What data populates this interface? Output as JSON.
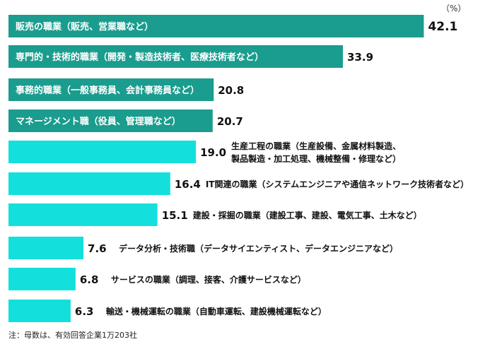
{
  "chart_data": {
    "type": "bar",
    "orientation": "horizontal",
    "unit_label": "（%）",
    "xlim": [
      0,
      43
    ],
    "categories": [
      [
        "販売の職業（販売、営業職など）"
      ],
      [
        "専門的・技術的職業（開発・製造技術者、医療技術者など）"
      ],
      [
        "事務的職業（一般事務員、会計事務員など）"
      ],
      [
        "マネージメント職（役員、管理職など）"
      ],
      [
        "生産工程の職業（生産設備、金属材料製造、",
        "製品製造・加工処理、機械整備・修理など）"
      ],
      [
        "IT関連の職業（システムエンジニアや通信ネットワーク技術者など）"
      ],
      [
        "建設・採掘の職業（建設工事、建設、電気工事、土木など）"
      ],
      [
        "データ分析・技術職（データサイエンティスト、データエンジニアなど）"
      ],
      [
        "サービスの職業（調理、接客、介護サービスなど）"
      ],
      [
        "輸送・機械運転の職業（自動車運転、建設機械運転など）"
      ]
    ],
    "values": [
      42.1,
      33.9,
      20.8,
      20.7,
      19.0,
      16.4,
      15.1,
      7.6,
      6.8,
      6.3
    ],
    "value_labels": [
      "42.1",
      "33.9",
      "20.8",
      "20.7",
      "19.0",
      "16.4",
      "15.1",
      "7.6",
      "6.8",
      "6.3"
    ],
    "label_inside_bar": [
      true,
      true,
      true,
      true,
      false,
      false,
      false,
      false,
      false,
      false
    ],
    "colors": {
      "highlight": "#1a9c8e",
      "normal": "#13e0dc"
    }
  },
  "footnote": "注：母数は、有効回答企業1万203社"
}
